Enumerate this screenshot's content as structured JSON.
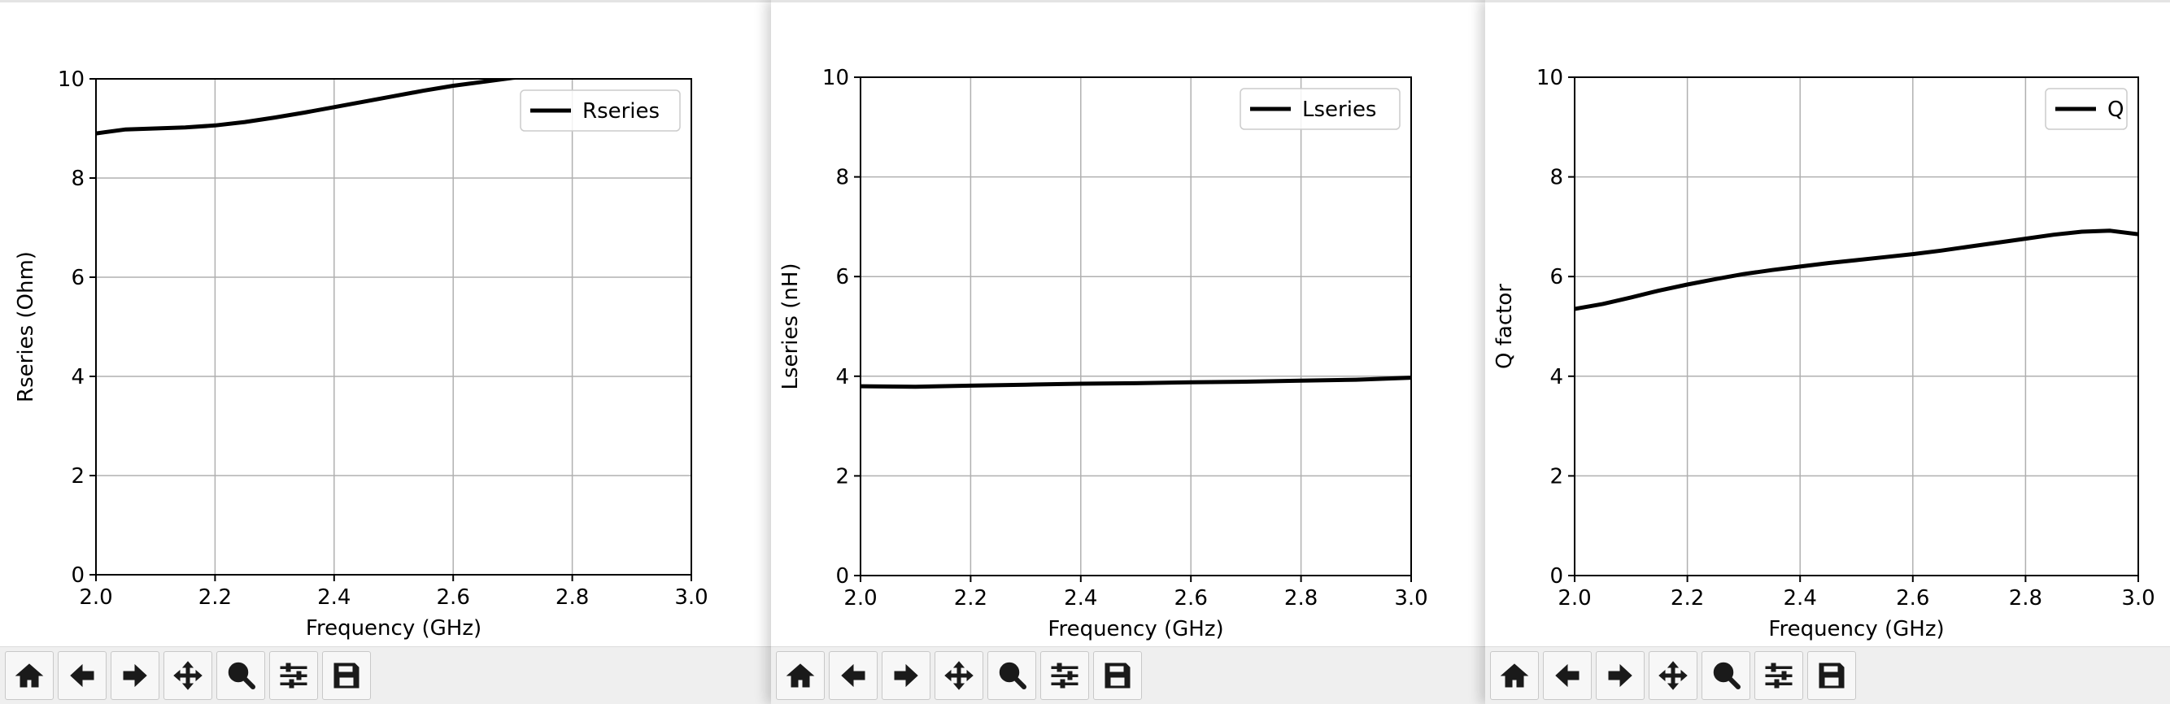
{
  "charts": [
    {
      "legend_label": "Rseries",
      "chart_data": {
        "type": "line",
        "xlabel": "Frequency (GHz)",
        "ylabel": "Rseries (Ohm)",
        "xlim": [
          2.0,
          3.0
        ],
        "ylim": [
          0,
          10
        ],
        "xticks": [
          "2.0",
          "2.2",
          "2.4",
          "2.6",
          "2.8",
          "3.0"
        ],
        "yticks": [
          "0",
          "2",
          "4",
          "6",
          "8",
          "10"
        ],
        "grid": true,
        "legend_position": "top-right",
        "series": [
          {
            "name": "Rseries",
            "x": [
              2.0,
              2.05,
              2.1,
              2.15,
              2.2,
              2.25,
              2.3,
              2.35,
              2.4,
              2.45,
              2.5,
              2.55,
              2.6,
              2.65,
              2.7,
              2.75,
              2.8
            ],
            "y": [
              8.9,
              8.98,
              9.0,
              9.02,
              9.06,
              9.13,
              9.22,
              9.32,
              9.43,
              9.54,
              9.65,
              9.76,
              9.86,
              9.94,
              10.02,
              10.07,
              10.1
            ]
          }
        ]
      }
    },
    {
      "legend_label": "Lseries",
      "chart_data": {
        "type": "line",
        "xlabel": "Frequency (GHz)",
        "ylabel": "Lseries (nH)",
        "xlim": [
          2.0,
          3.0
        ],
        "ylim": [
          0,
          10
        ],
        "xticks": [
          "2.0",
          "2.2",
          "2.4",
          "2.6",
          "2.8",
          "3.0"
        ],
        "yticks": [
          "0",
          "2",
          "4",
          "6",
          "8",
          "10"
        ],
        "grid": true,
        "legend_position": "top-right",
        "series": [
          {
            "name": "Lseries",
            "x": [
              2.0,
              2.1,
              2.2,
              2.3,
              2.4,
              2.5,
              2.6,
              2.7,
              2.8,
              2.9,
              3.0
            ],
            "y": [
              3.8,
              3.79,
              3.81,
              3.83,
              3.85,
              3.86,
              3.88,
              3.89,
              3.91,
              3.93,
              3.97
            ]
          }
        ]
      }
    },
    {
      "legend_label": "Q",
      "chart_data": {
        "type": "line",
        "xlabel": "Frequency (GHz)",
        "ylabel": "Q factor",
        "xlim": [
          2.0,
          3.0
        ],
        "ylim": [
          0,
          10
        ],
        "xticks": [
          "2.0",
          "2.2",
          "2.4",
          "2.6",
          "2.8",
          "3.0"
        ],
        "yticks": [
          "0",
          "2",
          "4",
          "6",
          "8",
          "10"
        ],
        "grid": true,
        "legend_position": "top-right",
        "series": [
          {
            "name": "Q",
            "x": [
              2.0,
              2.05,
              2.1,
              2.15,
              2.2,
              2.25,
              2.3,
              2.35,
              2.4,
              2.45,
              2.5,
              2.55,
              2.6,
              2.65,
              2.7,
              2.75,
              2.8,
              2.85,
              2.9,
              2.95,
              3.0
            ],
            "y": [
              5.35,
              5.45,
              5.58,
              5.72,
              5.84,
              5.95,
              6.05,
              6.13,
              6.2,
              6.27,
              6.33,
              6.39,
              6.45,
              6.52,
              6.6,
              6.68,
              6.76,
              6.84,
              6.9,
              6.92,
              6.85
            ]
          }
        ]
      }
    }
  ],
  "toolbar": {
    "buttons": [
      "home-icon",
      "back-arrow-icon",
      "forward-arrow-icon",
      "pan-move-icon",
      "zoom-magnifier-icon",
      "configure-subplots-icon",
      "save-floppy-icon"
    ]
  }
}
